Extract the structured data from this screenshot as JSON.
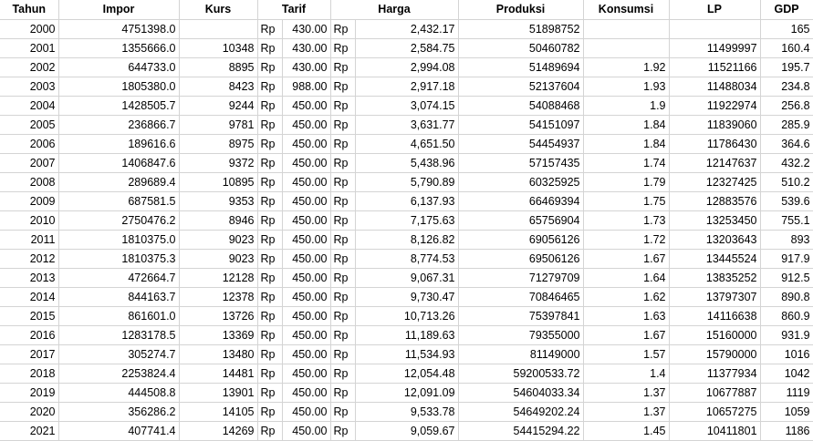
{
  "headers": [
    "Tahun",
    "Impor",
    "Kurs",
    "Tarif",
    "",
    "Harga",
    "",
    "Produksi",
    "Konsumsi",
    "LP",
    "GDP"
  ],
  "rows": [
    {
      "tahun": "2000",
      "impor": "4751398.0",
      "kurs": "",
      "rp1": "Rp",
      "tarif": "430.00",
      "rp2": "Rp",
      "harga": "2,432.17",
      "produksi": "51898752",
      "konsumsi": "",
      "lp": "",
      "gdp": "165"
    },
    {
      "tahun": "2001",
      "impor": "1355666.0",
      "kurs": "10348",
      "rp1": "Rp",
      "tarif": "430.00",
      "rp2": "Rp",
      "harga": "2,584.75",
      "produksi": "50460782",
      "konsumsi": "",
      "lp": "11499997",
      "gdp": "160.4"
    },
    {
      "tahun": "2002",
      "impor": "644733.0",
      "kurs": "8895",
      "rp1": "Rp",
      "tarif": "430.00",
      "rp2": "Rp",
      "harga": "2,994.08",
      "produksi": "51489694",
      "konsumsi": "1.92",
      "lp": "11521166",
      "gdp": "195.7"
    },
    {
      "tahun": "2003",
      "impor": "1805380.0",
      "kurs": "8423",
      "rp1": "Rp",
      "tarif": "988.00",
      "rp2": "Rp",
      "harga": "2,917.18",
      "produksi": "52137604",
      "konsumsi": "1.93",
      "lp": "11488034",
      "gdp": "234.8"
    },
    {
      "tahun": "2004",
      "impor": "1428505.7",
      "kurs": "9244",
      "rp1": "Rp",
      "tarif": "450.00",
      "rp2": "Rp",
      "harga": "3,074.15",
      "produksi": "54088468",
      "konsumsi": "1.9",
      "lp": "11922974",
      "gdp": "256.8"
    },
    {
      "tahun": "2005",
      "impor": "236866.7",
      "kurs": "9781",
      "rp1": "Rp",
      "tarif": "450.00",
      "rp2": "Rp",
      "harga": "3,631.77",
      "produksi": "54151097",
      "konsumsi": "1.84",
      "lp": "11839060",
      "gdp": "285.9"
    },
    {
      "tahun": "2006",
      "impor": "189616.6",
      "kurs": "8975",
      "rp1": "Rp",
      "tarif": "450.00",
      "rp2": "Rp",
      "harga": "4,651.50",
      "produksi": "54454937",
      "konsumsi": "1.84",
      "lp": "11786430",
      "gdp": "364.6"
    },
    {
      "tahun": "2007",
      "impor": "1406847.6",
      "kurs": "9372",
      "rp1": "Rp",
      "tarif": "450.00",
      "rp2": "Rp",
      "harga": "5,438.96",
      "produksi": "57157435",
      "konsumsi": "1.74",
      "lp": "12147637",
      "gdp": "432.2"
    },
    {
      "tahun": "2008",
      "impor": "289689.4",
      "kurs": "10895",
      "rp1": "Rp",
      "tarif": "450.00",
      "rp2": "Rp",
      "harga": "5,790.89",
      "produksi": "60325925",
      "konsumsi": "1.79",
      "lp": "12327425",
      "gdp": "510.2"
    },
    {
      "tahun": "2009",
      "impor": "687581.5",
      "kurs": "9353",
      "rp1": "Rp",
      "tarif": "450.00",
      "rp2": "Rp",
      "harga": "6,137.93",
      "produksi": "66469394",
      "konsumsi": "1.75",
      "lp": "12883576",
      "gdp": "539.6"
    },
    {
      "tahun": "2010",
      "impor": "2750476.2",
      "kurs": "8946",
      "rp1": "Rp",
      "tarif": "450.00",
      "rp2": "Rp",
      "harga": "7,175.63",
      "produksi": "65756904",
      "konsumsi": "1.73",
      "lp": "13253450",
      "gdp": "755.1"
    },
    {
      "tahun": "2011",
      "impor": "1810375.0",
      "kurs": "9023",
      "rp1": "Rp",
      "tarif": "450.00",
      "rp2": "Rp",
      "harga": "8,126.82",
      "produksi": "69056126",
      "konsumsi": "1.72",
      "lp": "13203643",
      "gdp": "893"
    },
    {
      "tahun": "2012",
      "impor": "1810375.3",
      "kurs": "9023",
      "rp1": "Rp",
      "tarif": "450.00",
      "rp2": "Rp",
      "harga": "8,774.53",
      "produksi": "69506126",
      "konsumsi": "1.67",
      "lp": "13445524",
      "gdp": "917.9"
    },
    {
      "tahun": "2013",
      "impor": "472664.7",
      "kurs": "12128",
      "rp1": "Rp",
      "tarif": "450.00",
      "rp2": "Rp",
      "harga": "9,067.31",
      "produksi": "71279709",
      "konsumsi": "1.64",
      "lp": "13835252",
      "gdp": "912.5"
    },
    {
      "tahun": "2014",
      "impor": "844163.7",
      "kurs": "12378",
      "rp1": "Rp",
      "tarif": "450.00",
      "rp2": "Rp",
      "harga": "9,730.47",
      "produksi": "70846465",
      "konsumsi": "1.62",
      "lp": "13797307",
      "gdp": "890.8"
    },
    {
      "tahun": "2015",
      "impor": "861601.0",
      "kurs": "13726",
      "rp1": "Rp",
      "tarif": "450.00",
      "rp2": "Rp",
      "harga": "10,713.26",
      "produksi": "75397841",
      "konsumsi": "1.63",
      "lp": "14116638",
      "gdp": "860.9"
    },
    {
      "tahun": "2016",
      "impor": "1283178.5",
      "kurs": "13369",
      "rp1": "Rp",
      "tarif": "450.00",
      "rp2": "Rp",
      "harga": "11,189.63",
      "produksi": "79355000",
      "konsumsi": "1.67",
      "lp": "15160000",
      "gdp": "931.9"
    },
    {
      "tahun": "2017",
      "impor": "305274.7",
      "kurs": "13480",
      "rp1": "Rp",
      "tarif": "450.00",
      "rp2": "Rp",
      "harga": "11,534.93",
      "produksi": "81149000",
      "konsumsi": "1.57",
      "lp": "15790000",
      "gdp": "1016"
    },
    {
      "tahun": "2018",
      "impor": "2253824.4",
      "kurs": "14481",
      "rp1": "Rp",
      "tarif": "450.00",
      "rp2": "Rp",
      "harga": "12,054.48",
      "produksi": "59200533.72",
      "konsumsi": "1.4",
      "lp": "11377934",
      "gdp": "1042"
    },
    {
      "tahun": "2019",
      "impor": "444508.8",
      "kurs": "13901",
      "rp1": "Rp",
      "tarif": "450.00",
      "rp2": "Rp",
      "harga": "12,091.09",
      "produksi": "54604033.34",
      "konsumsi": "1.37",
      "lp": "10677887",
      "gdp": "1119"
    },
    {
      "tahun": "2020",
      "impor": "356286.2",
      "kurs": "14105",
      "rp1": "Rp",
      "tarif": "450.00",
      "rp2": "Rp",
      "harga": "9,533.78",
      "produksi": "54649202.24",
      "konsumsi": "1.37",
      "lp": "10657275",
      "gdp": "1059"
    },
    {
      "tahun": "2021",
      "impor": "407741.4",
      "kurs": "14269",
      "rp1": "Rp",
      "tarif": "450.00",
      "rp2": "Rp",
      "harga": "9,059.67",
      "produksi": "54415294.22",
      "konsumsi": "1.45",
      "lp": "10411801",
      "gdp": "1186"
    }
  ]
}
